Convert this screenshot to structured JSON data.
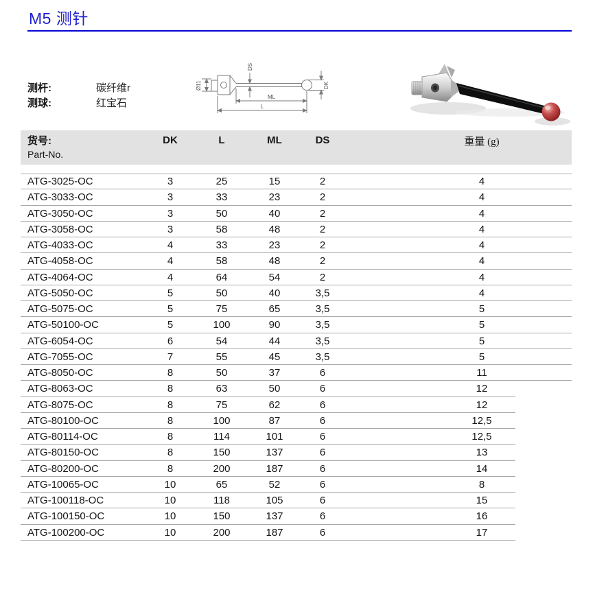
{
  "page": {
    "title": "M5 测针"
  },
  "specs": [
    {
      "label": "测杆:",
      "value": "碳纤维r"
    },
    {
      "label": "测球:",
      "value": "红宝石"
    }
  ],
  "drawing": {
    "labels": {
      "dia": "Ø11",
      "ds": "DS",
      "ml": "ML",
      "l": "L",
      "dk": "DK"
    }
  },
  "table": {
    "header": {
      "part_line1": "货号:",
      "part_line2": "Part-No.",
      "dk": "DK",
      "l": "L",
      "ml": "ML",
      "ds": "DS",
      "weight": "重量 (g)"
    },
    "rows": [
      {
        "part": "ATG-3025-OC",
        "dk": "3",
        "l": "25",
        "ml": "15",
        "ds": "2",
        "weight": "4"
      },
      {
        "part": "ATG-3033-OC",
        "dk": "3",
        "l": "33",
        "ml": "23",
        "ds": "2",
        "weight": "4"
      },
      {
        "part": "ATG-3050-OC",
        "dk": "3",
        "l": "50",
        "ml": "40",
        "ds": "2",
        "weight": "4"
      },
      {
        "part": "ATG-3058-OC",
        "dk": "3",
        "l": "58",
        "ml": "48",
        "ds": "2",
        "weight": "4"
      },
      {
        "part": "ATG-4033-OC",
        "dk": "4",
        "l": "33",
        "ml": "23",
        "ds": "2",
        "weight": "4"
      },
      {
        "part": "ATG-4058-OC",
        "dk": "4",
        "l": "58",
        "ml": "48",
        "ds": "2",
        "weight": "4"
      },
      {
        "part": "ATG-4064-OC",
        "dk": "4",
        "l": "64",
        "ml": "54",
        "ds": "2",
        "weight": "4"
      },
      {
        "part": "ATG-5050-OC",
        "dk": "5",
        "l": "50",
        "ml": "40",
        "ds": "3,5",
        "weight": "4"
      },
      {
        "part": "ATG-5075-OC",
        "dk": "5",
        "l": "75",
        "ml": "65",
        "ds": "3,5",
        "weight": "5"
      },
      {
        "part": "ATG-50100-OC",
        "dk": "5",
        "l": "100",
        "ml": "90",
        "ds": "3,5",
        "weight": "5"
      },
      {
        "part": "ATG-6054-OC",
        "dk": "6",
        "l": "54",
        "ml": "44",
        "ds": "3,5",
        "weight": "5"
      },
      {
        "part": "ATG-7055-OC",
        "dk": "7",
        "l": "55",
        "ml": "45",
        "ds": "3,5",
        "weight": "5"
      },
      {
        "part": "ATG-8050-OC",
        "dk": "8",
        "l": "50",
        "ml": "37",
        "ds": "6",
        "weight": "11"
      },
      {
        "part": "ATG-8063-OC",
        "dk": "8",
        "l": "63",
        "ml": "50",
        "ds": "6",
        "weight": "12"
      },
      {
        "part": "ATG-8075-OC",
        "dk": "8",
        "l": "75",
        "ml": "62",
        "ds": "6",
        "weight": "12"
      },
      {
        "part": "ATG-80100-OC",
        "dk": "8",
        "l": "100",
        "ml": "87",
        "ds": "6",
        "weight": "12,5"
      },
      {
        "part": "ATG-80114-OC",
        "dk": "8",
        "l": "114",
        "ml": "101",
        "ds": "6",
        "weight": "12,5"
      },
      {
        "part": "ATG-80150-OC",
        "dk": "8",
        "l": "150",
        "ml": "137",
        "ds": "6",
        "weight": "13"
      },
      {
        "part": "ATG-80200-OC",
        "dk": "8",
        "l": "200",
        "ml": "187",
        "ds": "6",
        "weight": "14"
      },
      {
        "part": "ATG-10065-OC",
        "dk": "10",
        "l": "65",
        "ml": "52",
        "ds": "6",
        "weight": "8"
      },
      {
        "part": "ATG-100118-OC",
        "dk": "10",
        "l": "118",
        "ml": "105",
        "ds": "6",
        "weight": "15"
      },
      {
        "part": "ATG-100150-OC",
        "dk": "10",
        "l": "150",
        "ml": "137",
        "ds": "6",
        "weight": "16"
      },
      {
        "part": "ATG-100200-OC",
        "dk": "10",
        "l": "200",
        "ml": "187",
        "ds": "6",
        "weight": "17"
      }
    ]
  },
  "colors": {
    "title_blue": "#2121ce",
    "rule_blue": "#0202d6",
    "header_gray": "#e2e2e2",
    "row_line": "#a8a8a8",
    "ruby_red": "#9c2a2a"
  }
}
